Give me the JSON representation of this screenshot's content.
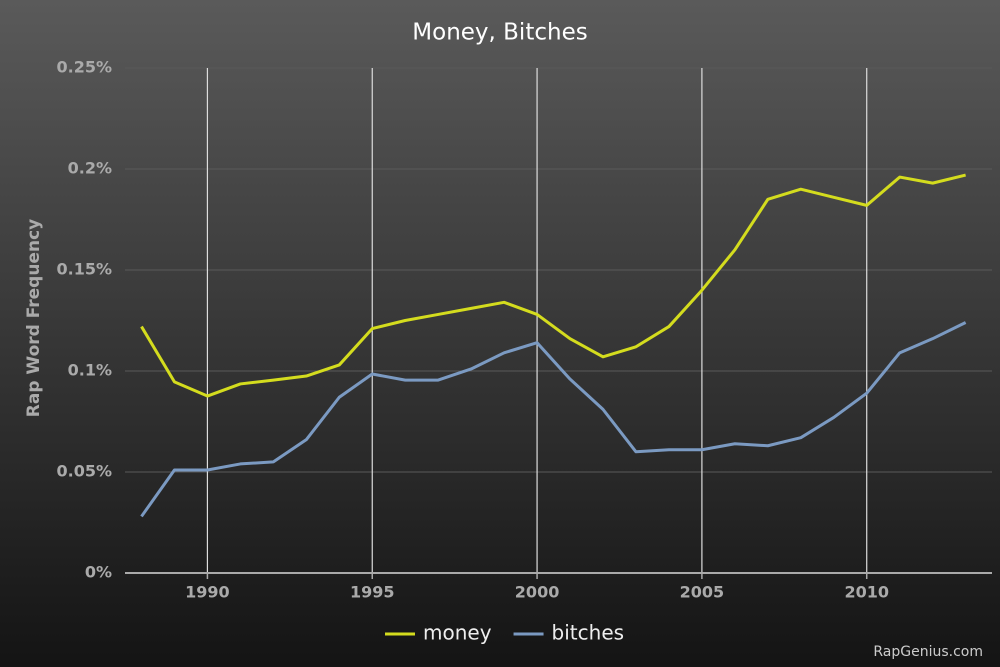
{
  "chart_data": {
    "type": "line",
    "title": "Money, Bitches",
    "y_label": "Rap Word Frequency",
    "watermark": "RapGenius.com",
    "x": [
      1988,
      1989,
      1990,
      1991,
      1992,
      1993,
      1994,
      1995,
      1996,
      1997,
      1998,
      1999,
      2000,
      2001,
      2002,
      2003,
      2004,
      2005,
      2006,
      2007,
      2008,
      2009,
      2010,
      2011,
      2012,
      2013
    ],
    "series": [
      {
        "name": "money",
        "color": "#d4dc1e",
        "values": [
          0.122,
          0.0946,
          0.0876,
          0.0936,
          0.0955,
          0.0975,
          0.103,
          0.121,
          0.125,
          0.128,
          0.131,
          0.134,
          0.128,
          0.116,
          0.107,
          0.112,
          0.122,
          0.14,
          0.16,
          0.185,
          0.19,
          0.186,
          0.182,
          0.196,
          0.193,
          0.197
        ]
      },
      {
        "name": "bitches",
        "color": "#7b9ac2",
        "values": [
          0.028,
          0.051,
          0.051,
          0.054,
          0.055,
          0.066,
          0.087,
          0.0985,
          0.0955,
          0.0955,
          0.101,
          0.109,
          0.114,
          0.096,
          0.081,
          0.06,
          0.061,
          0.061,
          0.064,
          0.063,
          0.067,
          0.077,
          0.089,
          0.109,
          0.116,
          0.124
        ]
      }
    ],
    "xlim": [
      1987.5,
      2013.8
    ],
    "xticks": [
      1990,
      1995,
      2000,
      2005,
      2010
    ],
    "ylim": [
      0,
      0.25
    ],
    "yticks": [
      {
        "value": 0,
        "label": "0%"
      },
      {
        "value": 0.05,
        "label": "0.05%"
      },
      {
        "value": 0.1,
        "label": "0.1%"
      },
      {
        "value": 0.15,
        "label": "0.15%"
      },
      {
        "value": 0.2,
        "label": "0.2%"
      },
      {
        "value": 0.25,
        "label": "0.25%"
      }
    ],
    "grid": true,
    "legend": "bottom"
  }
}
